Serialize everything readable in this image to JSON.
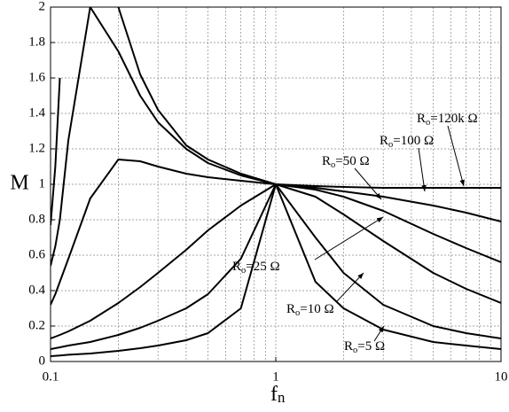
{
  "chart_data": {
    "type": "line",
    "xlabel": "fn",
    "ylabel": "M",
    "xscale": "log",
    "xlim": [
      0.1,
      10
    ],
    "xticks": [
      0.1,
      1,
      10
    ],
    "ylim": [
      0,
      2
    ],
    "yticks": [
      0,
      0.2,
      0.4,
      0.6,
      0.8,
      1,
      1.2,
      1.4,
      1.6,
      1.8,
      2
    ],
    "grid": true,
    "x": [
      0.1,
      0.105,
      0.11,
      0.12,
      0.15,
      0.2,
      0.25,
      0.3,
      0.4,
      0.5,
      0.7,
      1,
      1.5,
      2,
      3,
      5,
      7,
      10
    ],
    "series": [
      {
        "name": "Ro=120k Ω",
        "color": "#000000",
        "values": [
          0.77,
          1.1,
          1.6,
          null,
          null,
          2.0,
          1.62,
          1.42,
          1.22,
          1.14,
          1.06,
          1.0,
          0.99,
          0.985,
          0.98,
          0.98,
          0.98,
          0.98
        ]
      },
      {
        "name": "Ro=100 Ω",
        "color": "#000000",
        "values": [
          0.54,
          0.65,
          0.8,
          1.25,
          2.0,
          1.75,
          1.5,
          1.35,
          1.2,
          1.12,
          1.05,
          1.0,
          0.98,
          0.96,
          0.93,
          0.88,
          0.84,
          0.79
        ]
      },
      {
        "name": "Ro=50 Ω",
        "color": "#000000",
        "values": [
          0.32,
          0.38,
          0.45,
          0.58,
          0.92,
          1.14,
          1.13,
          1.1,
          1.06,
          1.04,
          1.02,
          1.0,
          0.97,
          0.93,
          0.85,
          0.72,
          0.64,
          0.56
        ]
      },
      {
        "name": "Ro=25 Ω",
        "color": "#000000",
        "values": [
          0.13,
          0.14,
          0.15,
          0.17,
          0.23,
          0.33,
          0.42,
          0.5,
          0.63,
          0.74,
          0.88,
          1.0,
          0.93,
          0.83,
          0.68,
          0.5,
          0.41,
          0.33
        ]
      },
      {
        "name": "Ro=10 Ω",
        "color": "#000000",
        "values": [
          0.07,
          0.075,
          0.08,
          0.09,
          0.11,
          0.15,
          0.19,
          0.23,
          0.3,
          0.38,
          0.58,
          1.0,
          0.7,
          0.5,
          0.32,
          0.2,
          0.16,
          0.13
        ]
      },
      {
        "name": "Ro=5 Ω",
        "color": "#000000",
        "values": [
          0.03,
          0.032,
          0.034,
          0.038,
          0.045,
          0.06,
          0.075,
          0.09,
          0.12,
          0.16,
          0.3,
          1.0,
          0.45,
          0.3,
          0.18,
          0.11,
          0.09,
          0.07
        ]
      }
    ]
  }
}
